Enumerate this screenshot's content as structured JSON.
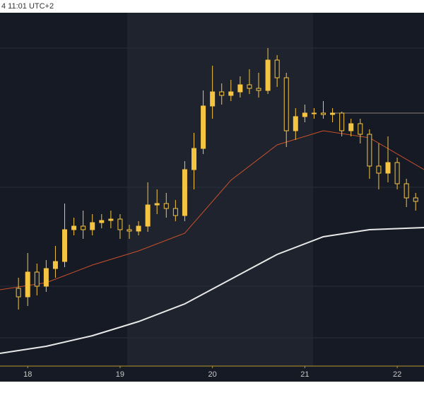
{
  "chart_data": {
    "type": "candlestick",
    "header": "4 11:01 UTC+2",
    "x": [
      17.9,
      18.0,
      18.1,
      18.2,
      18.3,
      18.4,
      18.5,
      18.6,
      18.7,
      18.8,
      18.9,
      19.0,
      19.1,
      19.2,
      19.3,
      19.4,
      19.5,
      19.6,
      19.7,
      19.8,
      19.9,
      20.0,
      20.1,
      20.2,
      20.3,
      20.4,
      20.5,
      20.6,
      20.7,
      20.8,
      20.9,
      21.0,
      21.1,
      21.2,
      21.3,
      21.4,
      21.5,
      21.6,
      21.7,
      21.8,
      21.9,
      22.0,
      22.1,
      22.2
    ],
    "open": [
      22,
      19.6,
      26.6,
      22.6,
      27.6,
      29.6,
      38.6,
      39.6,
      38.6,
      40.6,
      41.2,
      41.6,
      38.6,
      38.2,
      39.6,
      45.6,
      46,
      44.6,
      42.6,
      55.6,
      61.6,
      73.6,
      77.6,
      76.6,
      77.6,
      79.6,
      78.6,
      78,
      86.6,
      81.6,
      66.6,
      70.6,
      71.6,
      71.6,
      71.2,
      71.6,
      66.6,
      68.6,
      65.6,
      56.6,
      54.6,
      57.6,
      51.6,
      47.6
    ],
    "high": [
      25,
      32,
      29,
      30,
      34,
      46,
      42,
      44,
      43,
      43,
      44,
      43,
      40,
      41,
      52,
      50,
      49,
      47,
      58,
      66,
      78,
      85,
      80,
      81,
      82,
      84,
      83,
      90,
      88,
      83,
      73,
      74,
      73,
      75,
      73,
      72,
      70,
      70,
      67,
      63,
      65,
      59,
      53,
      49
    ],
    "low": [
      16,
      17,
      20,
      21,
      25,
      28,
      37,
      36,
      37,
      39,
      39,
      36,
      36,
      37,
      38,
      43,
      42,
      41,
      41,
      50,
      60,
      70,
      74,
      75,
      76,
      77,
      76,
      77,
      79,
      62,
      64,
      69,
      70,
      70,
      69,
      65,
      65,
      63,
      53,
      50,
      52,
      50,
      45,
      44
    ],
    "close": [
      19.6,
      26.6,
      22.6,
      27.6,
      29.6,
      38.6,
      39.6,
      38.6,
      40.6,
      41.2,
      41.6,
      38.6,
      38.2,
      39.6,
      45.6,
      46,
      44.6,
      42.6,
      55.6,
      61.6,
      73.6,
      77.6,
      76.6,
      77.6,
      79.6,
      78.6,
      78,
      86.6,
      81.6,
      66.6,
      70.6,
      71.6,
      71.6,
      71.2,
      71.6,
      66.6,
      68.6,
      65.6,
      56.6,
      54.6,
      57.6,
      51.6,
      47.6,
      46.6
    ],
    "up_color": "#f5c542",
    "down_color": "#f5c542",
    "lines": [
      {
        "color": "#c8502a",
        "x": [
          17.7,
          18.2,
          18.7,
          19.2,
          19.7,
          20.2,
          20.7,
          21.2,
          21.7,
          22.29
        ],
        "values": [
          21.6,
          23.6,
          28.6,
          32.6,
          37.6,
          52.6,
          62.6,
          66.6,
          64.6,
          55.6
        ]
      },
      {
        "color": "#e8e8e8",
        "x": [
          17.7,
          18.2,
          18.7,
          19.2,
          19.7,
          20.2,
          20.7,
          21.2,
          21.7,
          22.29
        ],
        "values": [
          3.6,
          5.6,
          8.6,
          12.6,
          17.6,
          24.6,
          31.6,
          36.6,
          38.6,
          39.2
        ]
      }
    ],
    "xlim": [
      17.7,
      22.29
    ],
    "ylim": [
      0,
      100
    ],
    "xticks": [
      18,
      19,
      20,
      21,
      22
    ]
  }
}
